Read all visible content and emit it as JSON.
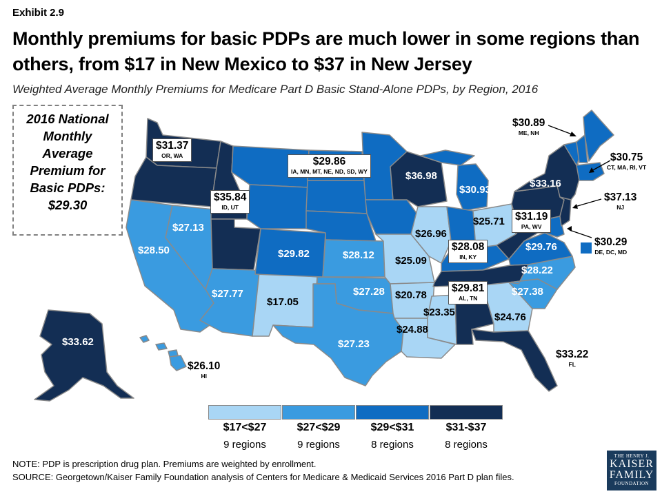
{
  "header": {
    "exhibit": "Exhibit 2.9",
    "title": "Monthly premiums for basic PDPs are much lower in some regions than others, from $17 in New Mexico to $37 in New Jersey",
    "subtitle": "Weighted Average Monthly Premiums for Medicare Part D Basic Stand-Alone PDPs, by Region, 2016"
  },
  "national": {
    "line1": "2016 National",
    "line2": "Monthly",
    "line3": "Average",
    "line4": "Premium for",
    "line5": "Basic PDPs:",
    "value": "$29.30"
  },
  "colors": {
    "tier1": "#a9d6f5",
    "tier2": "#3a9be0",
    "tier3": "#0f6cc2",
    "tier4": "#132e54",
    "border": "#8a8a8a"
  },
  "regions": {
    "or_wa": {
      "value": "$31.37",
      "states": "OR, WA"
    },
    "id_ut": {
      "value": "$35.84",
      "states": "ID, UT"
    },
    "north_central": {
      "value": "$29.86",
      "states": "IA, MN, MT, NE, ND, SD, WY"
    },
    "ca": {
      "value": "$28.50"
    },
    "nv": {
      "value": "$27.13"
    },
    "az": {
      "value": "$27.77"
    },
    "nm": {
      "value": "$17.05"
    },
    "co": {
      "value": "$29.82"
    },
    "ks": {
      "value": "$28.12"
    },
    "ok": {
      "value": "$27.28"
    },
    "tx": {
      "value": "$27.23"
    },
    "wi": {
      "value": "$36.98"
    },
    "mi": {
      "value": "$30.93"
    },
    "il": {
      "value": "$26.96"
    },
    "mo": {
      "value": "$25.09"
    },
    "ar": {
      "value": "$20.78"
    },
    "la": {
      "value": "$24.88"
    },
    "ms": {
      "value": "$23.35"
    },
    "in_ky": {
      "value": "$28.08",
      "states": "IN, KY"
    },
    "oh": {
      "value": "$25.71"
    },
    "pa_wv": {
      "value": "$31.19",
      "states": "PA, WV"
    },
    "va": {
      "value": "$29.76"
    },
    "nc": {
      "value": "$28.22"
    },
    "sc": {
      "value": "$27.38"
    },
    "ga": {
      "value": "$24.76"
    },
    "al_tn": {
      "value": "$29.81",
      "states": "AL, TN"
    },
    "fl": {
      "value": "$33.22",
      "states": "FL"
    },
    "ny": {
      "value": "$33.16"
    },
    "me_nh": {
      "value": "$30.89",
      "states": "ME, NH"
    },
    "new_england": {
      "value": "$30.75",
      "states": "CT, MA, RI, VT"
    },
    "nj": {
      "value": "$37.13",
      "states": "NJ"
    },
    "de_dc_md": {
      "value": "$30.29",
      "states": "DE, DC, MD"
    },
    "ak": {
      "value": "$33.62"
    },
    "hi": {
      "value": "$26.10",
      "states": "HI"
    }
  },
  "legend": [
    {
      "range": "$17<$27",
      "count": "9 regions",
      "color": "#a9d6f5"
    },
    {
      "range": "$27<$29",
      "count": "9 regions",
      "color": "#3a9be0"
    },
    {
      "range": "$29<$31",
      "count": "8 regions",
      "color": "#0f6cc2"
    },
    {
      "range": "$31-$37",
      "count": "8 regions",
      "color": "#132e54"
    }
  ],
  "footer": {
    "note": "NOTE: PDP is prescription drug plan. Premiums are weighted by enrollment.",
    "source": "SOURCE: Georgetown/Kaiser Family Foundation analysis of Centers for Medicare & Medicaid Services 2016 Part D plan files.",
    "logo_line1": "THE HENRY J.",
    "logo_line2": "KAISER",
    "logo_line3": "FAMILY",
    "logo_line4": "FOUNDATION"
  }
}
